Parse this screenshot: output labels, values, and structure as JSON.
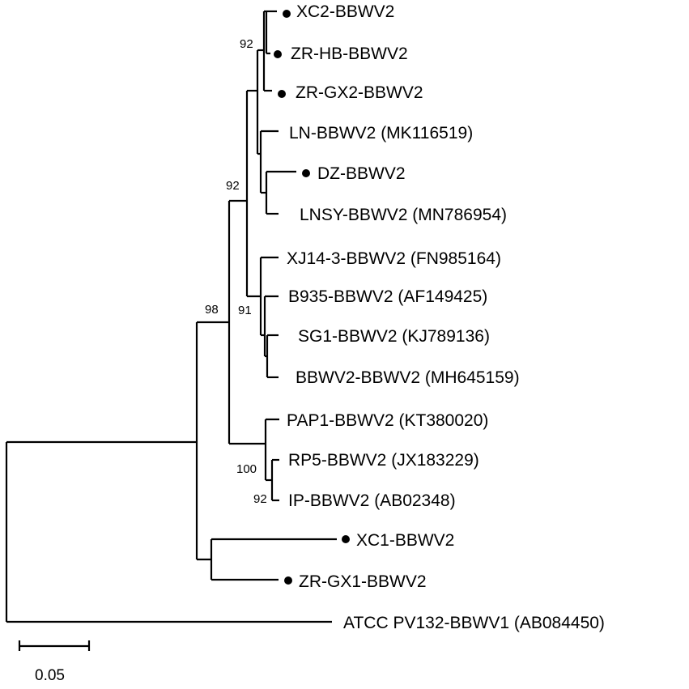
{
  "taxa": [
    {
      "name": "XC2-BBWV2",
      "marked": true
    },
    {
      "name": "ZR-HB-BBWV2",
      "marked": true
    },
    {
      "name": "ZR-GX2-BBWV2",
      "marked": true
    },
    {
      "name": "LN-BBWV2 (MK116519)",
      "marked": false
    },
    {
      "name": "DZ-BBWV2",
      "marked": true
    },
    {
      "name": "LNSY-BBWV2 (MN786954)",
      "marked": false
    },
    {
      "name": "XJ14-3-BBWV2 (FN985164)",
      "marked": false
    },
    {
      "name": "B935-BBWV2 (AF149425)",
      "marked": false
    },
    {
      "name": "SG1-BBWV2 (KJ789136)",
      "marked": false
    },
    {
      "name": "BBWV2-BBWV2 (MH645159)",
      "marked": false
    },
    {
      "name": "PAP1-BBWV2 (KT380020)",
      "marked": false
    },
    {
      "name": "RP5-BBWV2 (JX183229)",
      "marked": false
    },
    {
      "name": "IP-BBWV2 (AB02348)",
      "marked": false
    },
    {
      "name": "XC1-BBWV2",
      "marked": true
    },
    {
      "name": "ZR-GX1-BBWV2",
      "marked": true
    },
    {
      "name": "ATCC PV132-BBWV1 (AB084450)",
      "marked": false
    }
  ],
  "bootstrap_values": [
    "92",
    "92",
    "98",
    "91",
    "100",
    "92"
  ],
  "scale_bar": {
    "label": "0.05"
  },
  "colors": {
    "line": "#000000",
    "background": "#ffffff"
  }
}
